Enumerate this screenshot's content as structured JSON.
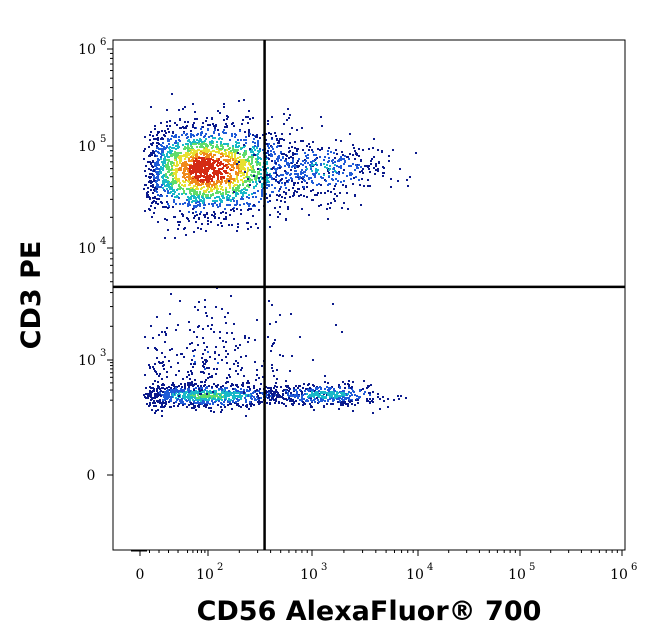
{
  "chart_data": {
    "type": "scatter",
    "style": "density-colored flow cytometry dot plot",
    "xlabel": "CD56 AlexaFluor® 700",
    "ylabel": "CD3 PE",
    "x_scale": "biexponential (log with linear region around 0)",
    "y_scale": "biexponential (log with linear region around 0)",
    "xlim": [
      -50,
      1000000
    ],
    "ylim": [
      -60,
      1000000
    ],
    "x_ticks": [
      {
        "value": 0,
        "base": "0",
        "exp": ""
      },
      {
        "value": 100,
        "base": "10",
        "exp": "2"
      },
      {
        "value": 1000,
        "base": "10",
        "exp": "3"
      },
      {
        "value": 10000,
        "base": "10",
        "exp": "4"
      },
      {
        "value": 100000,
        "base": "10",
        "exp": "5"
      },
      {
        "value": 1000000,
        "base": "10",
        "exp": "6"
      }
    ],
    "y_ticks": [
      {
        "value": 0,
        "base": "0",
        "exp": ""
      },
      {
        "value": 1000,
        "base": "10",
        "exp": "3"
      },
      {
        "value": 10000,
        "base": "10",
        "exp": "4"
      },
      {
        "value": 100000,
        "base": "10",
        "exp": "5"
      },
      {
        "value": 1000000,
        "base": "10",
        "exp": "6"
      }
    ],
    "gates": {
      "x_divider": 350,
      "y_divider": 4500
    },
    "density_colors": [
      "#0b1a8c",
      "#1f5bd8",
      "#19b8c8",
      "#5fdc6a",
      "#e8e032",
      "#f08a1c",
      "#d42a14"
    ],
    "populations": [
      {
        "quadrant": "upper-left",
        "label": "CD3+ CD56-",
        "x_center": 90,
        "y_center": 60000,
        "x_spread_decades": 0.45,
        "y_spread_decades": 0.22,
        "count": 2400,
        "peak_density": 1.0
      },
      {
        "quadrant": "upper-right",
        "label": "CD3+ CD56+",
        "x_center": 1200,
        "y_center": 60000,
        "x_spread_decades": 0.32,
        "y_spread_decades": 0.14,
        "count": 380,
        "peak_density": 0.28
      },
      {
        "quadrant": "lower-left",
        "label": "CD3- CD56-",
        "x_center": 90,
        "y_center": 250,
        "x_spread_decades": 0.45,
        "y_spread_decades": 0.1,
        "count": 900,
        "peak_density": 0.45
      },
      {
        "quadrant": "lower-right",
        "label": "CD3- CD56+",
        "x_center": 1300,
        "y_center": 260,
        "x_spread_decades": 0.3,
        "y_spread_decades": 0.1,
        "count": 380,
        "peak_density": 0.35
      },
      {
        "quadrant": "lower-left",
        "label": "CD3- CD56- scattered",
        "x_center": 90,
        "y_center": 900,
        "x_spread_decades": 0.45,
        "y_spread_decades": 0.3,
        "count": 260,
        "peak_density": 0.1
      }
    ]
  }
}
